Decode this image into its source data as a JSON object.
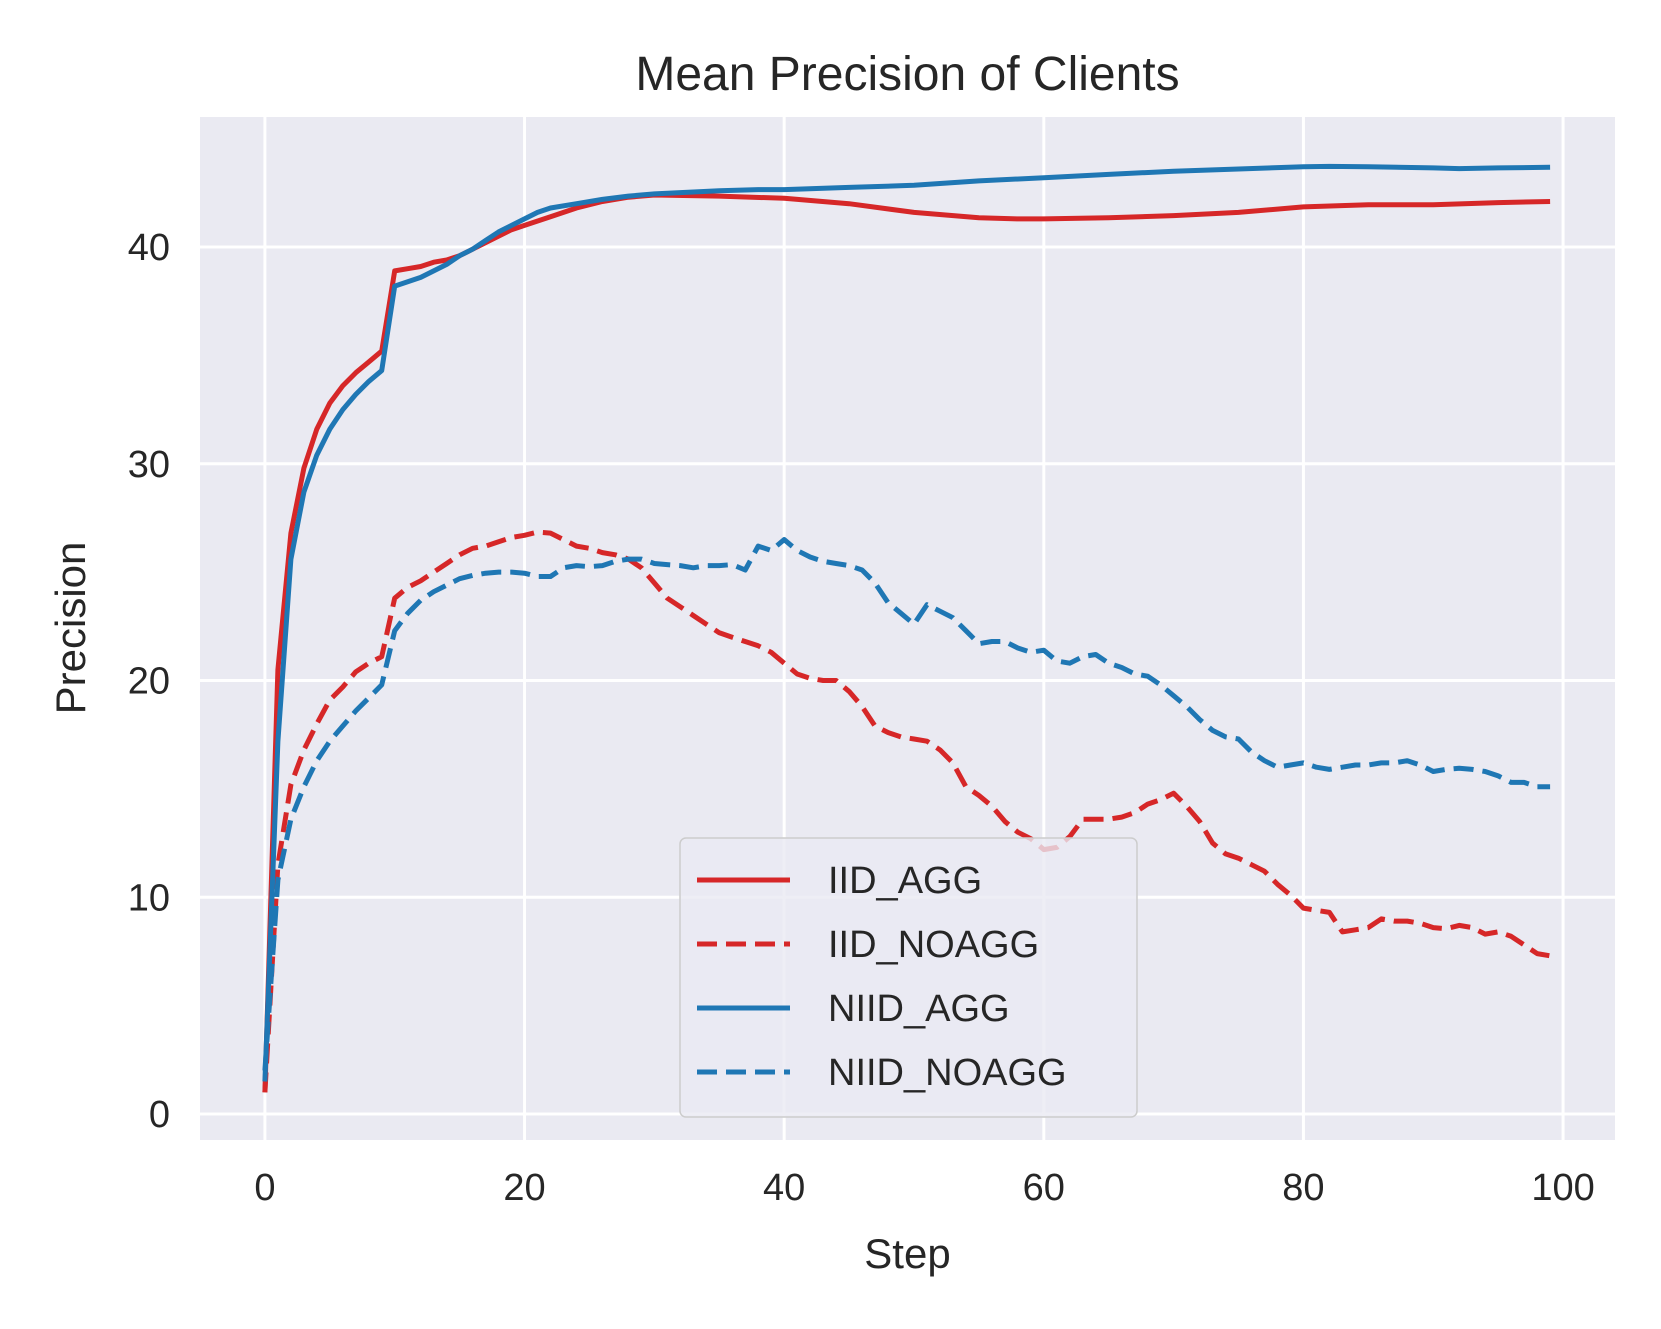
{
  "chart_data": {
    "type": "line",
    "title": "Mean Precision of Clients",
    "xlabel": "Step",
    "ylabel": "Precision",
    "xlim": [
      -5,
      104
    ],
    "ylim": [
      -1.2,
      46
    ],
    "xticks": [
      0,
      20,
      40,
      60,
      80,
      100
    ],
    "yticks": [
      0,
      10,
      20,
      30,
      40
    ],
    "grid": true,
    "legend_position": "lower-center",
    "series": [
      {
        "name": "IID_AGG",
        "color": "#d62728",
        "dash": "solid",
        "points": [
          [
            0,
            1
          ],
          [
            1,
            20.5
          ],
          [
            2,
            26.8
          ],
          [
            3,
            29.8
          ],
          [
            4,
            31.6
          ],
          [
            5,
            32.8
          ],
          [
            6,
            33.6
          ],
          [
            7,
            34.2
          ],
          [
            8,
            34.7
          ],
          [
            9,
            35.2
          ],
          [
            10,
            38.9
          ],
          [
            11,
            39
          ],
          [
            12,
            39.1
          ],
          [
            13,
            39.3
          ],
          [
            14,
            39.4
          ],
          [
            15,
            39.6
          ],
          [
            16,
            39.9
          ],
          [
            17,
            40.2
          ],
          [
            18,
            40.5
          ],
          [
            19,
            40.8
          ],
          [
            20,
            41
          ],
          [
            22,
            41.4
          ],
          [
            24,
            41.8
          ],
          [
            26,
            42.1
          ],
          [
            28,
            42.3
          ],
          [
            30,
            42.4
          ],
          [
            35,
            42.35
          ],
          [
            40,
            42.25
          ],
          [
            45,
            42
          ],
          [
            50,
            41.6
          ],
          [
            55,
            41.35
          ],
          [
            58,
            41.3
          ],
          [
            60,
            41.3
          ],
          [
            65,
            41.35
          ],
          [
            70,
            41.45
          ],
          [
            75,
            41.6
          ],
          [
            80,
            41.85
          ],
          [
            85,
            41.95
          ],
          [
            90,
            41.95
          ],
          [
            95,
            42.05
          ],
          [
            99,
            42.1
          ]
        ]
      },
      {
        "name": "IID_NOAGG",
        "color": "#d62728",
        "dash": "dashed",
        "points": [
          [
            0,
            1
          ],
          [
            1,
            11.5
          ],
          [
            2,
            15.2
          ],
          [
            3,
            16.8
          ],
          [
            4,
            18
          ],
          [
            5,
            19.1
          ],
          [
            6,
            19.7
          ],
          [
            7,
            20.4
          ],
          [
            8,
            20.8
          ],
          [
            9,
            21.1
          ],
          [
            10,
            23.8
          ],
          [
            11,
            24.3
          ],
          [
            12,
            24.6
          ],
          [
            13,
            25
          ],
          [
            14,
            25.4
          ],
          [
            15,
            25.8
          ],
          [
            16,
            26.1
          ],
          [
            17,
            26.2
          ],
          [
            18,
            26.4
          ],
          [
            19,
            26.6
          ],
          [
            20,
            26.7
          ],
          [
            21,
            26.85
          ],
          [
            22,
            26.8
          ],
          [
            23,
            26.5
          ],
          [
            24,
            26.2
          ],
          [
            25,
            26.1
          ],
          [
            26,
            25.9
          ],
          [
            27,
            25.8
          ],
          [
            28,
            25.6
          ],
          [
            29,
            25.2
          ],
          [
            30,
            24.5
          ],
          [
            31,
            23.8
          ],
          [
            32,
            23.4
          ],
          [
            33,
            23
          ],
          [
            34,
            22.6
          ],
          [
            35,
            22.2
          ],
          [
            36,
            22
          ],
          [
            37,
            21.8
          ],
          [
            38,
            21.6
          ],
          [
            39,
            21.3
          ],
          [
            40,
            20.8
          ],
          [
            41,
            20.3
          ],
          [
            42,
            20.1
          ],
          [
            43,
            20
          ],
          [
            44,
            20
          ],
          [
            45,
            19.5
          ],
          [
            46,
            18.8
          ],
          [
            47,
            17.9
          ],
          [
            48,
            17.6
          ],
          [
            49,
            17.4
          ],
          [
            50,
            17.3
          ],
          [
            51,
            17.2
          ],
          [
            52,
            16.8
          ],
          [
            53,
            16.2
          ],
          [
            54,
            15.1
          ],
          [
            55,
            14.7
          ],
          [
            56,
            14.2
          ],
          [
            57,
            13.5
          ],
          [
            58,
            13
          ],
          [
            59,
            12.7
          ],
          [
            60,
            12.2
          ],
          [
            61,
            12.3
          ],
          [
            62,
            12.8
          ],
          [
            63,
            13.6
          ],
          [
            64,
            13.6
          ],
          [
            65,
            13.6
          ],
          [
            66,
            13.7
          ],
          [
            67,
            13.9
          ],
          [
            68,
            14.3
          ],
          [
            69,
            14.5
          ],
          [
            70,
            14.8
          ],
          [
            71,
            14.2
          ],
          [
            72,
            13.5
          ],
          [
            73,
            12.5
          ],
          [
            74,
            12
          ],
          [
            75,
            11.8
          ],
          [
            76,
            11.5
          ],
          [
            77,
            11.2
          ],
          [
            78,
            10.6
          ],
          [
            79,
            10.1
          ],
          [
            80,
            9.5
          ],
          [
            81,
            9.4
          ],
          [
            82,
            9.3
          ],
          [
            83,
            8.4
          ],
          [
            84,
            8.5
          ],
          [
            85,
            8.6
          ],
          [
            86,
            9
          ],
          [
            87,
            8.9
          ],
          [
            88,
            8.9
          ],
          [
            89,
            8.8
          ],
          [
            90,
            8.6
          ],
          [
            91,
            8.55
          ],
          [
            92,
            8.7
          ],
          [
            93,
            8.6
          ],
          [
            94,
            8.3
          ],
          [
            95,
            8.4
          ],
          [
            96,
            8.2
          ],
          [
            97,
            7.8
          ],
          [
            98,
            7.4
          ],
          [
            99,
            7.3
          ]
        ]
      },
      {
        "name": "NIID_AGG",
        "color": "#1f77b4",
        "dash": "solid",
        "points": [
          [
            0,
            1.5
          ],
          [
            1,
            17.2
          ],
          [
            2,
            25.6
          ],
          [
            3,
            28.7
          ],
          [
            4,
            30.4
          ],
          [
            5,
            31.6
          ],
          [
            6,
            32.5
          ],
          [
            7,
            33.2
          ],
          [
            8,
            33.8
          ],
          [
            9,
            34.3
          ],
          [
            10,
            38.2
          ],
          [
            11,
            38.4
          ],
          [
            12,
            38.6
          ],
          [
            13,
            38.9
          ],
          [
            14,
            39.2
          ],
          [
            15,
            39.6
          ],
          [
            16,
            39.9
          ],
          [
            17,
            40.3
          ],
          [
            18,
            40.7
          ],
          [
            19,
            41
          ],
          [
            20,
            41.3
          ],
          [
            21,
            41.6
          ],
          [
            22,
            41.8
          ],
          [
            24,
            42
          ],
          [
            26,
            42.2
          ],
          [
            28,
            42.35
          ],
          [
            30,
            42.45
          ],
          [
            35,
            42.6
          ],
          [
            38,
            42.65
          ],
          [
            40,
            42.65
          ],
          [
            45,
            42.75
          ],
          [
            50,
            42.85
          ],
          [
            55,
            43.05
          ],
          [
            60,
            43.2
          ],
          [
            65,
            43.35
          ],
          [
            70,
            43.5
          ],
          [
            75,
            43.6
          ],
          [
            80,
            43.7
          ],
          [
            82,
            43.72
          ],
          [
            85,
            43.7
          ],
          [
            90,
            43.65
          ],
          [
            92,
            43.62
          ],
          [
            95,
            43.65
          ],
          [
            99,
            43.68
          ]
        ]
      },
      {
        "name": "NIID_NOAGG",
        "color": "#1f77b4",
        "dash": "dashed",
        "points": [
          [
            0,
            2
          ],
          [
            1,
            10.8
          ],
          [
            2,
            13.6
          ],
          [
            3,
            15.1
          ],
          [
            4,
            16.3
          ],
          [
            5,
            17.2
          ],
          [
            6,
            17.9
          ],
          [
            7,
            18.6
          ],
          [
            8,
            19.2
          ],
          [
            9,
            19.8
          ],
          [
            10,
            22.3
          ],
          [
            11,
            23.1
          ],
          [
            12,
            23.7
          ],
          [
            13,
            24.1
          ],
          [
            14,
            24.4
          ],
          [
            15,
            24.7
          ],
          [
            16,
            24.85
          ],
          [
            17,
            24.95
          ],
          [
            18,
            25
          ],
          [
            19,
            25
          ],
          [
            20,
            24.95
          ],
          [
            21,
            24.8
          ],
          [
            22,
            24.8
          ],
          [
            23,
            25.2
          ],
          [
            24,
            25.3
          ],
          [
            25,
            25.25
          ],
          [
            26,
            25.3
          ],
          [
            27,
            25.5
          ],
          [
            28,
            25.6
          ],
          [
            29,
            25.6
          ],
          [
            30,
            25.4
          ],
          [
            31,
            25.35
          ],
          [
            32,
            25.3
          ],
          [
            33,
            25.2
          ],
          [
            34,
            25.3
          ],
          [
            35,
            25.3
          ],
          [
            36,
            25.35
          ],
          [
            37,
            25.1
          ],
          [
            38,
            26.2
          ],
          [
            39,
            26
          ],
          [
            40,
            26.5
          ],
          [
            41,
            26
          ],
          [
            42,
            25.7
          ],
          [
            43,
            25.5
          ],
          [
            44,
            25.4
          ],
          [
            45,
            25.3
          ],
          [
            46,
            25.1
          ],
          [
            47,
            24.5
          ],
          [
            48,
            23.6
          ],
          [
            49,
            23.1
          ],
          [
            50,
            22.6
          ],
          [
            51,
            23.5
          ],
          [
            52,
            23.2
          ],
          [
            53,
            22.9
          ],
          [
            54,
            22.3
          ],
          [
            55,
            21.7
          ],
          [
            56,
            21.8
          ],
          [
            57,
            21.8
          ],
          [
            58,
            21.5
          ],
          [
            59,
            21.3
          ],
          [
            60,
            21.4
          ],
          [
            61,
            20.9
          ],
          [
            62,
            20.8
          ],
          [
            63,
            21.1
          ],
          [
            64,
            21.2
          ],
          [
            65,
            20.8
          ],
          [
            66,
            20.6
          ],
          [
            67,
            20.3
          ],
          [
            68,
            20.2
          ],
          [
            69,
            19.8
          ],
          [
            70,
            19.3
          ],
          [
            71,
            18.8
          ],
          [
            72,
            18.2
          ],
          [
            73,
            17.7
          ],
          [
            74,
            17.4
          ],
          [
            75,
            17.3
          ],
          [
            76,
            16.7
          ],
          [
            77,
            16.3
          ],
          [
            78,
            16
          ],
          [
            79,
            16.1
          ],
          [
            80,
            16.2
          ],
          [
            81,
            16
          ],
          [
            82,
            15.9
          ],
          [
            83,
            16
          ],
          [
            84,
            16.1
          ],
          [
            85,
            16.1
          ],
          [
            86,
            16.2
          ],
          [
            87,
            16.2
          ],
          [
            88,
            16.3
          ],
          [
            89,
            16.1
          ],
          [
            90,
            15.8
          ],
          [
            91,
            15.9
          ],
          [
            92,
            15.95
          ],
          [
            93,
            15.9
          ],
          [
            94,
            15.8
          ],
          [
            95,
            15.6
          ],
          [
            96,
            15.3
          ],
          [
            97,
            15.3
          ],
          [
            98,
            15.1
          ],
          [
            99,
            15.1
          ]
        ]
      }
    ]
  }
}
